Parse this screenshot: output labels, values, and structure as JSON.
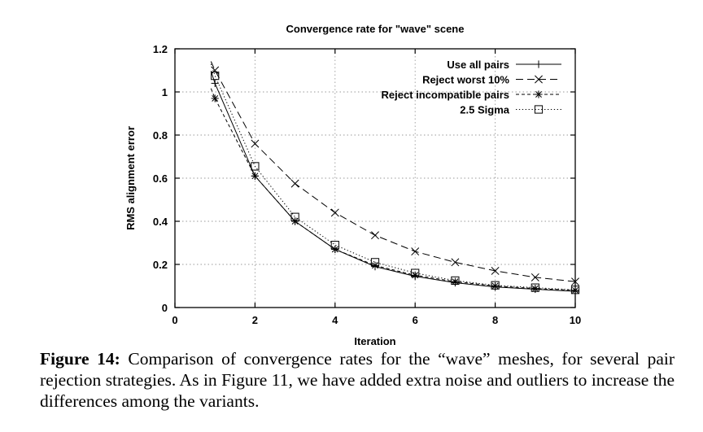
{
  "chart_data": {
    "type": "line",
    "title": "Convergence rate for \"wave\" scene",
    "xlabel": "Iteration",
    "ylabel": "RMS alignment error",
    "xlim": [
      0,
      10
    ],
    "ylim": [
      0,
      1.2
    ],
    "xticks": [
      "0",
      "2",
      "4",
      "6",
      "8",
      "10"
    ],
    "yticks": [
      "0",
      "0.2",
      "0.4",
      "0.6",
      "0.8",
      "1",
      "1.2"
    ],
    "grid": true,
    "legend_position": "top-right",
    "x": [
      1,
      2,
      3,
      4,
      5,
      6,
      7,
      8,
      9,
      10
    ],
    "series": [
      {
        "name": "Use all pairs",
        "marker": "plus",
        "dash": "solid",
        "values": [
          1.04,
          0.61,
          0.4,
          0.27,
          0.19,
          0.145,
          0.115,
          0.095,
          0.085,
          0.075
        ]
      },
      {
        "name": "Reject worst 10%",
        "marker": "x",
        "dash": "dashed",
        "values": [
          1.1,
          0.76,
          0.575,
          0.44,
          0.335,
          0.26,
          0.21,
          0.17,
          0.14,
          0.12
        ]
      },
      {
        "name": "Reject incompatible pairs",
        "marker": "star",
        "dash": "short-dashed",
        "values": [
          0.97,
          0.61,
          0.4,
          0.27,
          0.195,
          0.15,
          0.12,
          0.1,
          0.088,
          0.08
        ]
      },
      {
        "name": "2.5 Sigma",
        "marker": "square",
        "dash": "dotted",
        "values": [
          1.075,
          0.655,
          0.42,
          0.29,
          0.21,
          0.16,
          0.125,
          0.103,
          0.092,
          0.082
        ]
      }
    ]
  },
  "caption": {
    "label": "Figure 14:",
    "text": " Comparison of convergence rates for the “wave” meshes, for several pair rejection strategies.  As in Figure 11, we have added extra noise and outliers to increase the differences among the variants."
  }
}
